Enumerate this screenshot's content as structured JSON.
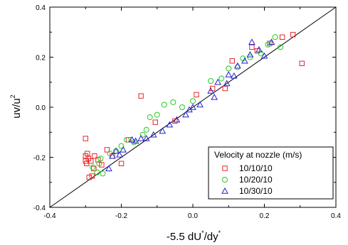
{
  "chart_data": {
    "type": "scatter",
    "xlabel": "-5.5 dU",
    "xlabel_sup1": "*",
    "xlabel_mid": "/dy",
    "xlabel_sup2": "*",
    "ylabel": "uv/u",
    "ylabel_sup": "2",
    "xlim": [
      -0.4,
      0.4
    ],
    "ylim": [
      -0.4,
      0.4
    ],
    "xticks": [
      -0.4,
      -0.2,
      0.0,
      0.2,
      0.4
    ],
    "yticks": [
      -0.4,
      -0.2,
      0.0,
      0.2,
      0.4
    ],
    "xtick_labels": [
      "-0.4",
      "-0.2",
      "0.0",
      "0.2",
      "0.4"
    ],
    "ytick_labels": [
      "-0.4",
      "-0.2",
      "0.0",
      "0.2",
      "0.4"
    ],
    "reference_line": [
      [
        -0.4,
        -0.4
      ],
      [
        0.4,
        0.4
      ]
    ],
    "grid": false,
    "legend": {
      "title": "Velocity at nozzle (m/s)",
      "placement": "bottom-right"
    },
    "series": [
      {
        "name": "10/10/10",
        "marker": "square",
        "color": "#e8262a",
        "points": [
          [
            -0.3,
            -0.125
          ],
          [
            -0.3,
            -0.195
          ],
          [
            -0.3,
            -0.215
          ],
          [
            -0.297,
            -0.225
          ],
          [
            -0.295,
            -0.185
          ],
          [
            -0.292,
            -0.205
          ],
          [
            -0.29,
            -0.28
          ],
          [
            -0.285,
            -0.215
          ],
          [
            -0.282,
            -0.275
          ],
          [
            -0.277,
            -0.245
          ],
          [
            -0.275,
            -0.195
          ],
          [
            -0.265,
            -0.21
          ],
          [
            -0.255,
            -0.23
          ],
          [
            -0.24,
            -0.17
          ],
          [
            -0.225,
            -0.195
          ],
          [
            -0.2,
            -0.225
          ],
          [
            -0.18,
            -0.13
          ],
          [
            -0.145,
            0.045
          ],
          [
            -0.105,
            -0.06
          ],
          [
            -0.05,
            -0.055
          ],
          [
            0.01,
            0.05
          ],
          [
            0.055,
            0.075
          ],
          [
            0.09,
            0.075
          ],
          [
            0.11,
            0.185
          ],
          [
            0.165,
            0.24
          ],
          [
            0.18,
            0.225
          ],
          [
            0.215,
            0.255
          ],
          [
            0.25,
            0.28
          ],
          [
            0.28,
            0.29
          ],
          [
            0.305,
            0.175
          ]
        ]
      },
      {
        "name": "10/20/10",
        "marker": "circle",
        "color": "#22cc22",
        "points": [
          [
            -0.28,
            -0.24
          ],
          [
            -0.268,
            -0.26
          ],
          [
            -0.262,
            -0.225
          ],
          [
            -0.258,
            -0.205
          ],
          [
            -0.252,
            -0.265
          ],
          [
            -0.232,
            -0.185
          ],
          [
            -0.215,
            -0.175
          ],
          [
            -0.2,
            -0.155
          ],
          [
            -0.185,
            -0.13
          ],
          [
            -0.165,
            -0.14
          ],
          [
            -0.14,
            -0.11
          ],
          [
            -0.13,
            -0.09
          ],
          [
            -0.12,
            -0.04
          ],
          [
            -0.1,
            -0.03
          ],
          [
            -0.08,
            0.01
          ],
          [
            -0.055,
            0.02
          ],
          [
            -0.03,
            0.0
          ],
          [
            0.0,
            0.025
          ],
          [
            0.05,
            0.105
          ],
          [
            0.08,
            0.115
          ],
          [
            0.1,
            0.155
          ],
          [
            0.125,
            0.16
          ],
          [
            0.14,
            0.195
          ],
          [
            0.16,
            0.2
          ],
          [
            0.19,
            0.215
          ],
          [
            0.21,
            0.25
          ],
          [
            0.23,
            0.28
          ],
          [
            0.245,
            0.24
          ]
        ]
      },
      {
        "name": "10/30/10",
        "marker": "triangle",
        "color": "#2222cc",
        "points": [
          [
            -0.235,
            -0.245
          ],
          [
            -0.225,
            -0.195
          ],
          [
            -0.215,
            -0.175
          ],
          [
            -0.205,
            -0.19
          ],
          [
            -0.195,
            -0.17
          ],
          [
            -0.17,
            -0.13
          ],
          [
            -0.16,
            -0.135
          ],
          [
            -0.145,
            -0.125
          ],
          [
            -0.13,
            -0.125
          ],
          [
            -0.11,
            -0.11
          ],
          [
            -0.085,
            -0.095
          ],
          [
            -0.065,
            -0.07
          ],
          [
            -0.045,
            -0.05
          ],
          [
            -0.02,
            -0.03
          ],
          [
            -0.01,
            -0.01
          ],
          [
            0.0,
            0.0
          ],
          [
            0.02,
            0.01
          ],
          [
            0.05,
            0.065
          ],
          [
            0.06,
            0.04
          ],
          [
            0.07,
            0.1
          ],
          [
            0.095,
            0.095
          ],
          [
            0.1,
            0.13
          ],
          [
            0.115,
            0.125
          ],
          [
            0.125,
            0.165
          ],
          [
            0.145,
            0.185
          ],
          [
            0.16,
            0.21
          ],
          [
            0.165,
            0.26
          ],
          [
            0.185,
            0.23
          ],
          [
            0.2,
            0.205
          ],
          [
            0.22,
            0.26
          ]
        ]
      }
    ]
  }
}
